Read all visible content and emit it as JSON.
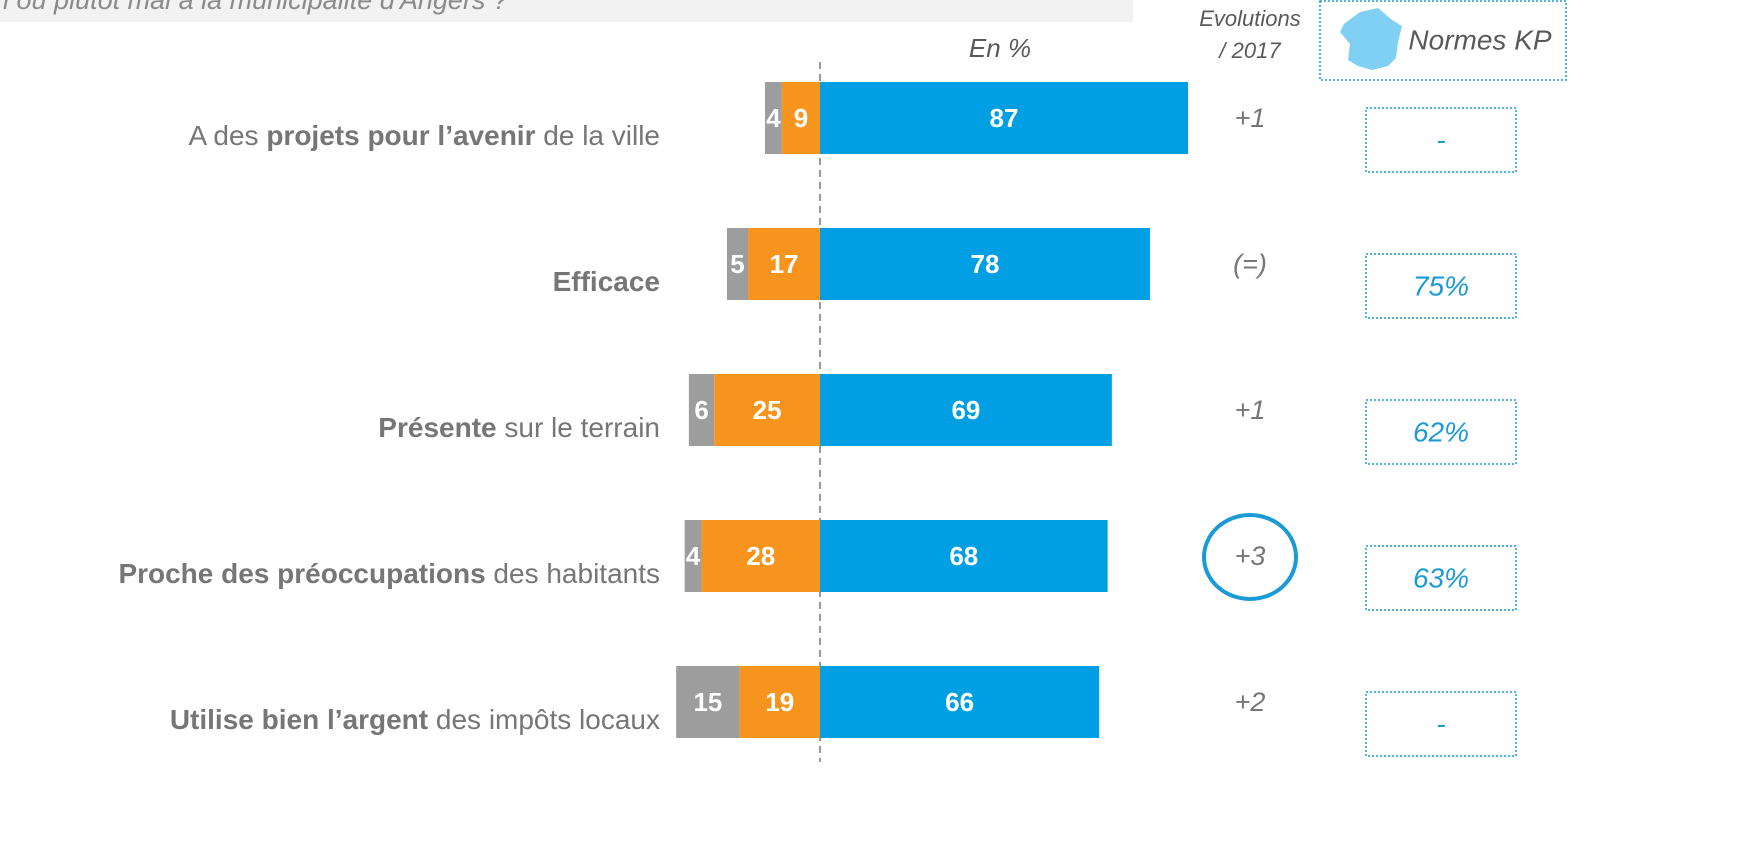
{
  "header": {
    "question": "n ou plutôt mal à la municipalité d'Angers ?",
    "unit_note": "En %",
    "evolution_header": [
      "Evolutions",
      "/ 2017"
    ],
    "norms_header": "Normes KP"
  },
  "chart_data": {
    "type": "diverging_bar",
    "categories": [
      [
        {
          "text": "A des ",
          "bold": false
        },
        {
          "text": "projets pour l’avenir",
          "bold": true
        },
        {
          "text": " de la ville",
          "bold": false
        }
      ],
      [
        {
          "text": "Efficace",
          "bold": true
        }
      ],
      [
        {
          "text": "Présente",
          "bold": true
        },
        {
          "text": " sur le terrain",
          "bold": false
        }
      ],
      [
        {
          "text": "Proche des préoccupations",
          "bold": true
        },
        {
          "text": " des habitants",
          "bold": false
        }
      ],
      [
        {
          "text": "Utilise bien l’argent",
          "bold": true
        },
        {
          "text": " des impôts locaux",
          "bold": false
        }
      ]
    ],
    "series": [
      {
        "color": "#f7941d",
        "side": "left",
        "values": [
          9,
          17,
          25,
          28,
          19
        ]
      },
      {
        "color": "#9d9d9d",
        "side": "left",
        "values": [
          4,
          5,
          6,
          4,
          15
        ]
      },
      {
        "color": "#009fe3",
        "side": "right",
        "values": [
          87,
          78,
          69,
          68,
          66
        ]
      }
    ]
  },
  "evolutions": [
    "+1",
    "(=)",
    "+1",
    "+3",
    "+2"
  ],
  "norms": [
    "-",
    "75%",
    "62%",
    "63%",
    "-"
  ]
}
